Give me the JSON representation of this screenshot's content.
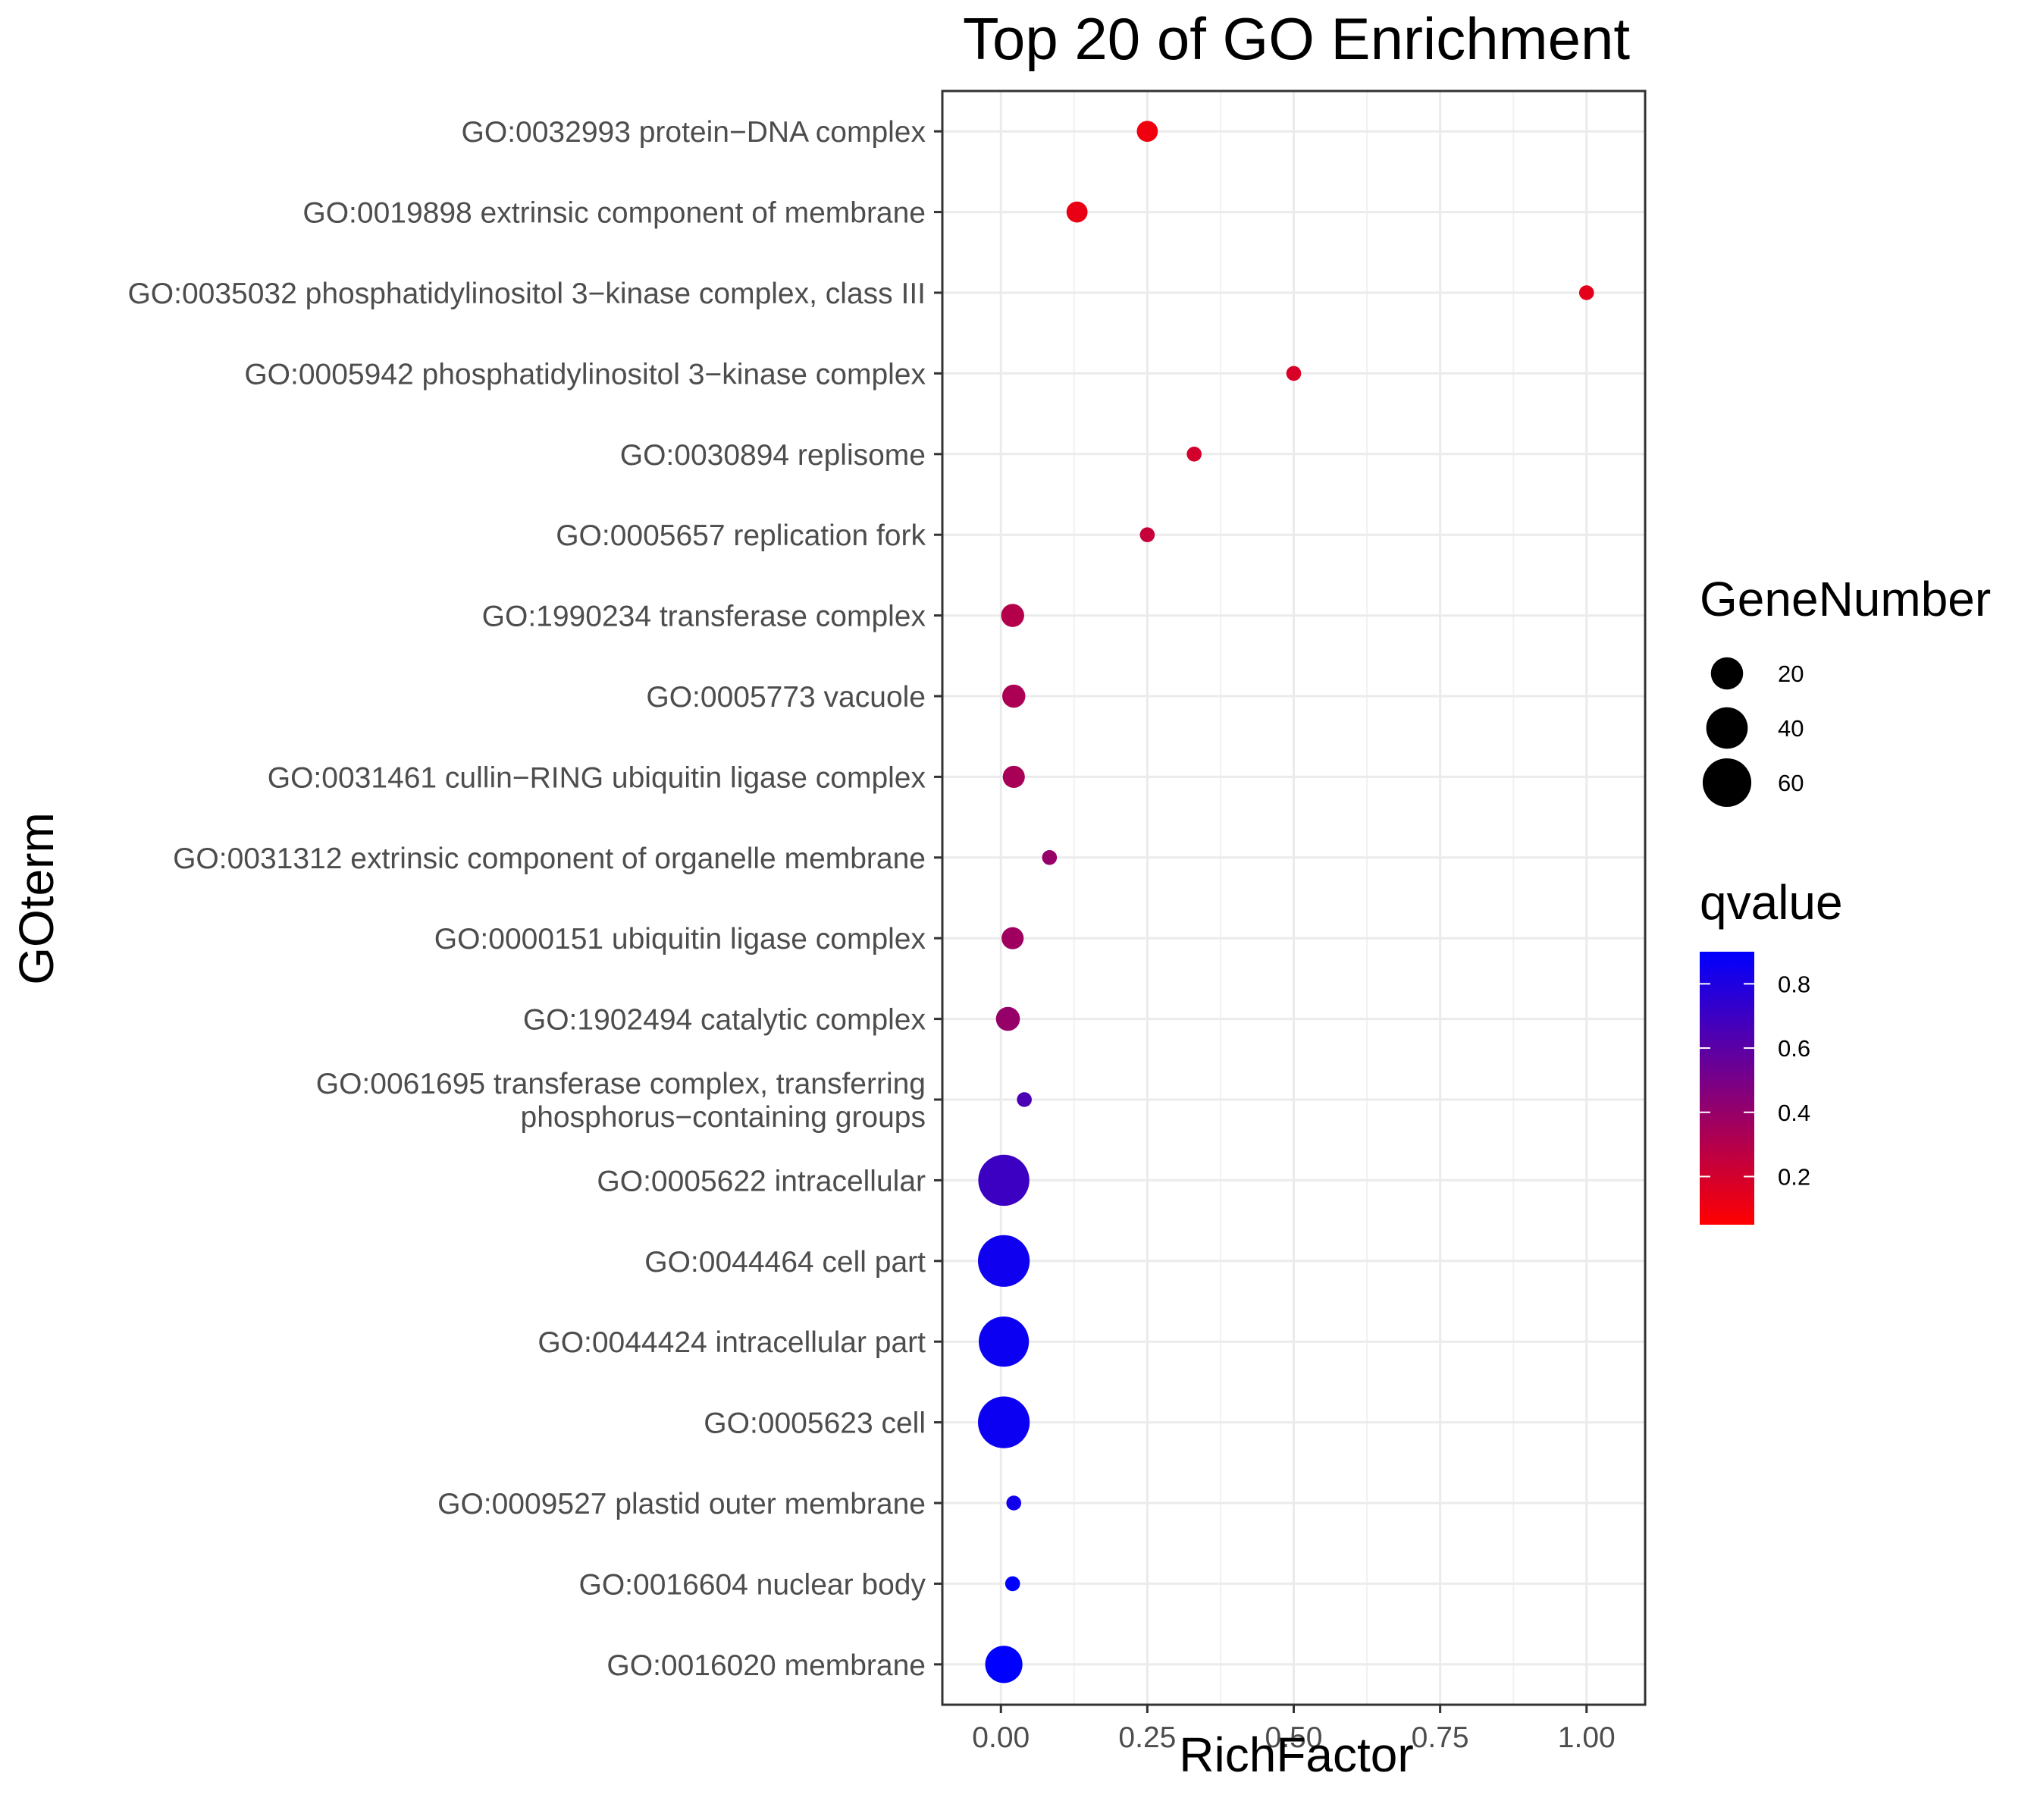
{
  "chart_data": {
    "type": "scatter",
    "title": "Top 20 of GO Enrichment",
    "xlabel": "RichFactor",
    "ylabel": "GOterm",
    "xlim": [
      -0.1,
      1.1
    ],
    "xticks": [
      "0.00",
      "0.25",
      "0.50",
      "0.75",
      "1.00"
    ],
    "xtick_values": [
      0,
      0.25,
      0.5,
      0.75,
      1.0
    ],
    "grid": true,
    "points": [
      {
        "term": "GO:0032993 protein−DNA complex",
        "rich_factor": 0.25,
        "gene_number": 5,
        "qvalue": 0.1
      },
      {
        "term": "GO:0019898 extrinsic component of membrane",
        "rich_factor": 0.13,
        "gene_number": 5,
        "qvalue": 0.12
      },
      {
        "term": "GO:0035032 phosphatidylinositol 3−kinase complex, class III",
        "rich_factor": 1.0,
        "gene_number": 1,
        "qvalue": 0.14
      },
      {
        "term": "GO:0005942 phosphatidylinositol 3−kinase complex",
        "rich_factor": 0.5,
        "gene_number": 1,
        "qvalue": 0.18
      },
      {
        "term": "GO:0030894 replisome",
        "rich_factor": 0.33,
        "gene_number": 1,
        "qvalue": 0.2
      },
      {
        "term": "GO:0005657 replication fork",
        "rich_factor": 0.25,
        "gene_number": 1,
        "qvalue": 0.24
      },
      {
        "term": "GO:1990234 transferase complex",
        "rich_factor": 0.02,
        "gene_number": 7,
        "qvalue": 0.3
      },
      {
        "term": "GO:0005773 vacuole",
        "rich_factor": 0.022,
        "gene_number": 7,
        "qvalue": 0.33
      },
      {
        "term": "GO:0031461 cullin−RING ubiquitin ligase complex",
        "rich_factor": 0.022,
        "gene_number": 6,
        "qvalue": 0.34
      },
      {
        "term": "GO:0031312 extrinsic component of organelle membrane",
        "rich_factor": 0.083,
        "gene_number": 1,
        "qvalue": 0.4
      },
      {
        "term": "GO:0000151 ubiquitin ligase complex",
        "rich_factor": 0.02,
        "gene_number": 6,
        "qvalue": 0.37
      },
      {
        "term": "GO:1902494 catalytic complex",
        "rich_factor": 0.012,
        "gene_number": 8,
        "qvalue": 0.4
      },
      {
        "term": "GO:0061695 transferase complex, transferring\nphosphorus−containing groups",
        "rich_factor": 0.04,
        "gene_number": 1,
        "qvalue": 0.65
      },
      {
        "term": "GO:0005622 intracellular",
        "rich_factor": 0.005,
        "gene_number": 68,
        "qvalue": 0.7
      },
      {
        "term": "GO:0044464 cell part",
        "rich_factor": 0.005,
        "gene_number": 70,
        "qvalue": 0.85
      },
      {
        "term": "GO:0044424 intracellular part",
        "rich_factor": 0.005,
        "gene_number": 65,
        "qvalue": 0.86
      },
      {
        "term": "GO:0005623 cell",
        "rich_factor": 0.005,
        "gene_number": 70,
        "qvalue": 0.86
      },
      {
        "term": "GO:0009527 plastid outer membrane",
        "rich_factor": 0.022,
        "gene_number": 1,
        "qvalue": 0.84
      },
      {
        "term": "GO:0016604 nuclear body",
        "rich_factor": 0.02,
        "gene_number": 1,
        "qvalue": 0.92
      },
      {
        "term": "GO:0016020 membrane",
        "rich_factor": 0.005,
        "gene_number": 30,
        "qvalue": 0.93
      }
    ],
    "size_legend": {
      "title": "GeneNumber",
      "values": [
        20,
        40,
        60
      ],
      "labels": [
        "20",
        "40",
        "60"
      ]
    },
    "color_legend": {
      "title": "qvalue",
      "range": [
        0.05,
        0.9
      ],
      "ticks": [
        0.2,
        0.4,
        0.6,
        0.8
      ],
      "labels": [
        "0.2",
        "0.4",
        "0.6",
        "0.8"
      ],
      "low_color": "#FF0000",
      "high_color": "#0000FF"
    },
    "legend_position": "right"
  }
}
